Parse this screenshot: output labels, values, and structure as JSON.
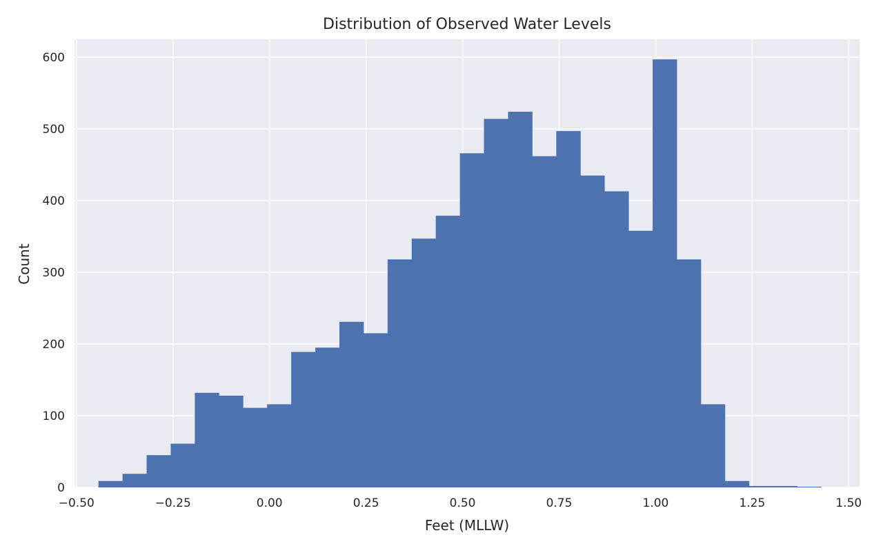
{
  "chart_data": {
    "type": "bar",
    "title": "Distribution of Observed Water Levels",
    "xlabel": "Feet (MLLW)",
    "ylabel": "Count",
    "xlim": [
      -0.505,
      1.528
    ],
    "ylim": [
      0,
      625
    ],
    "grid": true,
    "x_ticks": [
      "−0.50",
      "−0.25",
      "0.00",
      "0.25",
      "0.50",
      "0.75",
      "1.00",
      "1.25",
      "1.50"
    ],
    "x_tick_values": [
      -0.5,
      -0.25,
      0.0,
      0.25,
      0.5,
      0.75,
      1.0,
      1.25,
      1.5
    ],
    "y_ticks": [
      "0",
      "100",
      "200",
      "300",
      "400",
      "500",
      "600"
    ],
    "y_tick_values": [
      0,
      100,
      200,
      300,
      400,
      500,
      600
    ],
    "bin_start": -0.443,
    "bin_width": 0.0624,
    "values": [
      9,
      19,
      45,
      61,
      132,
      128,
      111,
      116,
      189,
      195,
      231,
      215,
      318,
      347,
      379,
      466,
      514,
      524,
      462,
      497,
      435,
      413,
      358,
      597,
      318,
      116,
      9,
      2,
      2,
      1
    ],
    "bar_color": "#4c72b0",
    "background_color": "#eaeaf2",
    "grid_color": "#ffffff"
  }
}
